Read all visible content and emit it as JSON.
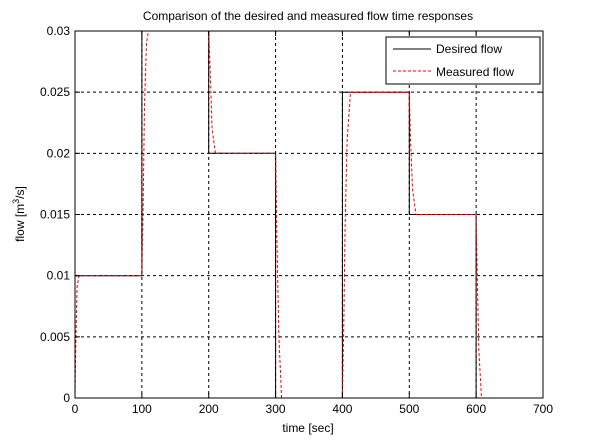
{
  "chart_data": {
    "type": "line",
    "title": "Comparison of the desired and measured flow time responses",
    "xlabel": "time [sec]",
    "ylabel_main": "flow [m",
    "ylabel_sup": "3",
    "ylabel_end": "/s]",
    "xlim": [
      0,
      700
    ],
    "ylim": [
      0,
      0.03
    ],
    "xticks": [
      0,
      100,
      200,
      300,
      400,
      500,
      600,
      700
    ],
    "xtick_labels": [
      "0",
      "100",
      "200",
      "300",
      "400",
      "500",
      "600",
      "700"
    ],
    "yticks": [
      0,
      0.005,
      0.01,
      0.015,
      0.02,
      0.025,
      0.03
    ],
    "ytick_labels": [
      "0",
      "0.005",
      "0.01",
      "0.015",
      "0.02",
      "0.025",
      "0.03"
    ],
    "grid": true,
    "legend_position": "top-right",
    "series": [
      {
        "name": "Desired flow",
        "color": "#000000",
        "style": "solid",
        "points": [
          [
            0,
            0
          ],
          [
            0,
            0.01
          ],
          [
            100,
            0.01
          ],
          [
            100,
            0.03
          ],
          [
            200,
            0.03
          ],
          [
            200,
            0.02
          ],
          [
            300,
            0.02
          ],
          [
            300,
            0
          ],
          [
            400,
            0
          ],
          [
            400,
            0.025
          ],
          [
            500,
            0.025
          ],
          [
            500,
            0.015
          ],
          [
            600,
            0.015
          ],
          [
            600,
            0
          ],
          [
            700,
            0
          ]
        ]
      },
      {
        "name": "Measured flow",
        "color": "#ff0000",
        "style": "dashed",
        "points": [
          [
            0,
            0
          ],
          [
            1,
            0.004
          ],
          [
            3,
            0.009
          ],
          [
            6,
            0.01
          ],
          [
            100,
            0.01
          ],
          [
            102,
            0.016
          ],
          [
            104,
            0.024
          ],
          [
            107,
            0.029
          ],
          [
            110,
            0.03
          ],
          [
            200,
            0.03
          ],
          [
            202,
            0.027
          ],
          [
            205,
            0.022
          ],
          [
            210,
            0.02
          ],
          [
            300,
            0.02
          ],
          [
            302,
            0.013
          ],
          [
            305,
            0.005
          ],
          [
            309,
            0
          ],
          [
            400,
            0
          ],
          [
            402,
            0.006
          ],
          [
            404,
            0.014
          ],
          [
            407,
            0.021
          ],
          [
            412,
            0.025
          ],
          [
            500,
            0.025
          ],
          [
            502,
            0.021
          ],
          [
            505,
            0.017
          ],
          [
            510,
            0.015
          ],
          [
            600,
            0.015
          ],
          [
            602,
            0.009
          ],
          [
            604,
            0.004
          ],
          [
            608,
            0
          ],
          [
            700,
            0
          ]
        ]
      }
    ]
  }
}
